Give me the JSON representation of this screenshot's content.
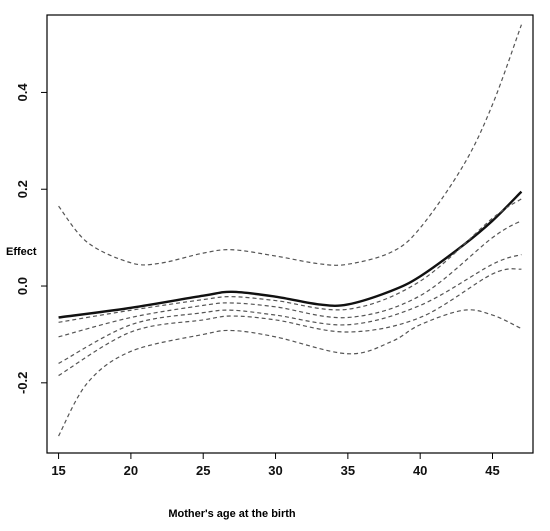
{
  "chart_data": {
    "type": "line",
    "xlabel": "Mother's age at the birth",
    "ylabel": "Effect",
    "xlim": [
      14.2,
      47.8
    ],
    "ylim": [
      -0.345,
      0.56
    ],
    "x_ticks": [
      15,
      20,
      25,
      30,
      35,
      40,
      45
    ],
    "x_tick_labels": [
      "15",
      "20",
      "25",
      "30",
      "35",
      "40",
      "45"
    ],
    "y_ticks": [
      -0.2,
      0.0,
      0.2,
      0.4
    ],
    "y_tick_labels": [
      "-0.2",
      "0.0",
      "0.2",
      "0.4"
    ],
    "grid": false,
    "legend": "none",
    "series": [
      {
        "style": "solid",
        "x": [
          15,
          20,
          25,
          27,
          30,
          33,
          35,
          38,
          40,
          43,
          45,
          47
        ],
        "values": [
          -0.065,
          -0.045,
          -0.02,
          -0.012,
          -0.022,
          -0.038,
          -0.038,
          -0.01,
          0.02,
          0.085,
          0.135,
          0.195
        ]
      },
      {
        "style": "dashed",
        "x": [
          15,
          17,
          20,
          22,
          25,
          27,
          30,
          33,
          35,
          38,
          40,
          43,
          45,
          47
        ],
        "values": [
          0.165,
          0.09,
          0.048,
          0.047,
          0.068,
          0.075,
          0.062,
          0.046,
          0.045,
          0.07,
          0.12,
          0.25,
          0.375,
          0.54
        ]
      },
      {
        "style": "dashed",
        "x": [
          15,
          20,
          25,
          27,
          30,
          35,
          40,
          45,
          47
        ],
        "values": [
          -0.075,
          -0.05,
          -0.028,
          -0.022,
          -0.03,
          -0.048,
          0.01,
          0.14,
          0.18
        ]
      },
      {
        "style": "dashed",
        "x": [
          15,
          20,
          25,
          27,
          30,
          35,
          40,
          45,
          47
        ],
        "values": [
          -0.105,
          -0.065,
          -0.04,
          -0.035,
          -0.043,
          -0.065,
          -0.02,
          0.1,
          0.135
        ]
      },
      {
        "style": "dashed",
        "x": [
          15,
          20,
          25,
          27,
          30,
          35,
          40,
          45,
          47
        ],
        "values": [
          -0.16,
          -0.08,
          -0.055,
          -0.05,
          -0.06,
          -0.08,
          -0.04,
          0.045,
          0.065
        ]
      },
      {
        "style": "dashed",
        "x": [
          15,
          20,
          25,
          27,
          30,
          35,
          40,
          45,
          47
        ],
        "values": [
          -0.185,
          -0.095,
          -0.07,
          -0.062,
          -0.07,
          -0.095,
          -0.065,
          0.025,
          0.035
        ]
      },
      {
        "style": "dashed",
        "x": [
          15,
          17,
          20,
          25,
          27,
          30,
          35,
          38,
          40,
          43,
          45,
          47
        ],
        "values": [
          -0.31,
          -0.2,
          -0.135,
          -0.1,
          -0.092,
          -0.105,
          -0.14,
          -0.115,
          -0.08,
          -0.05,
          -0.06,
          -0.088
        ]
      }
    ]
  }
}
